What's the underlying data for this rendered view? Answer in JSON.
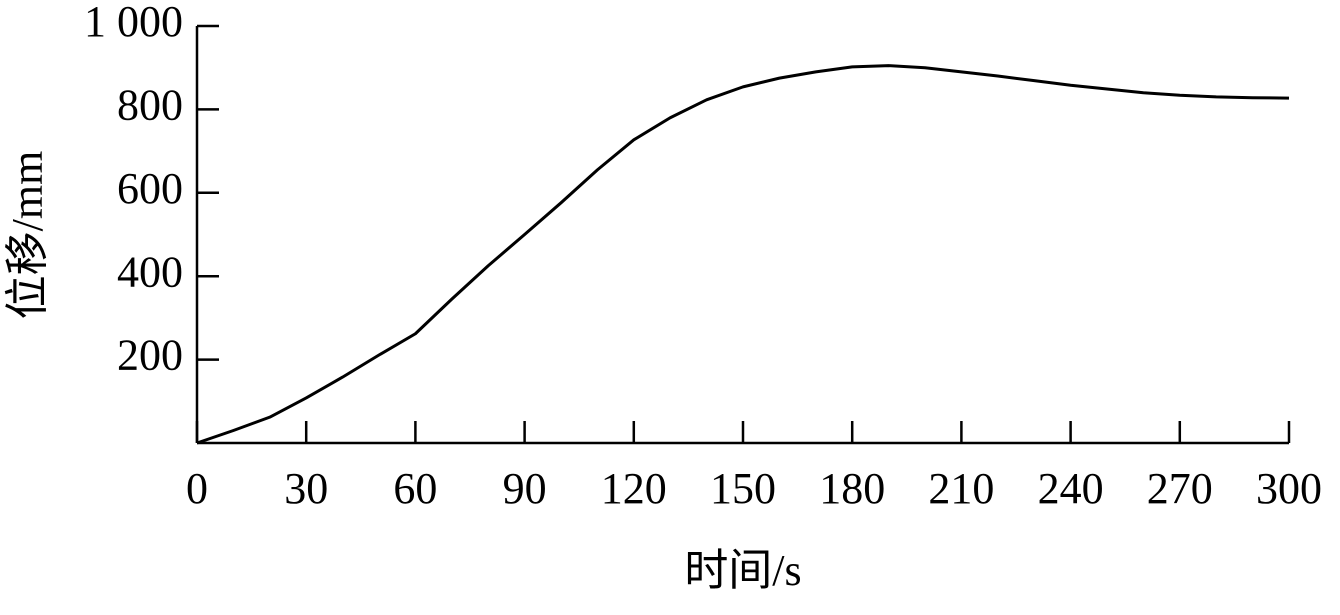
{
  "chart_data": {
    "type": "line",
    "x_label": "时间/s",
    "y_label": "位移/mm",
    "x": [
      0,
      10,
      20,
      30,
      40,
      50,
      60,
      70,
      80,
      90,
      100,
      110,
      120,
      130,
      140,
      150,
      160,
      170,
      180,
      190,
      200,
      210,
      220,
      230,
      240,
      250,
      260,
      270,
      280,
      290,
      300
    ],
    "series": [
      {
        "color": "#000000",
        "values": [
          0,
          30,
          62,
          108,
          158,
          211,
          262,
          345,
          425,
          500,
          576,
          655,
          727,
          780,
          823,
          854,
          875,
          890,
          902,
          905,
          900,
          890,
          880,
          869,
          858,
          849,
          840,
          834,
          830,
          828,
          827
        ]
      }
    ],
    "xlim": [
      0,
      300
    ],
    "ylim": [
      0,
      1000
    ],
    "xticks": [
      0,
      30,
      60,
      90,
      120,
      150,
      180,
      210,
      240,
      270,
      300
    ],
    "yticks": [
      200,
      400,
      600,
      800,
      {
        "value": 1000,
        "label": "1 000"
      }
    ],
    "grid": false
  }
}
